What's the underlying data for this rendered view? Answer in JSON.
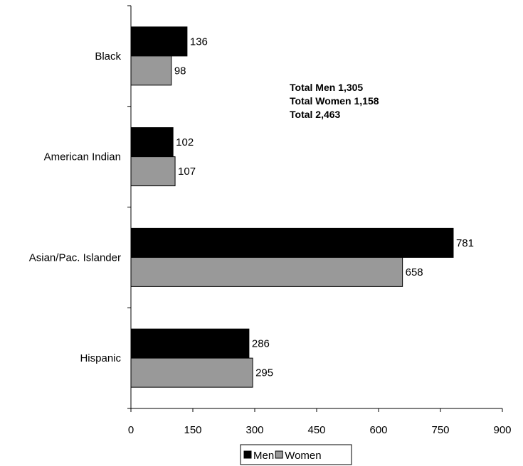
{
  "chart_data": {
    "type": "bar",
    "orientation": "horizontal",
    "categories": [
      "Black",
      "American Indian",
      "Asian/Pac. Islander",
      "Hispanic"
    ],
    "series": [
      {
        "name": "Men",
        "values": [
          136,
          102,
          781,
          286
        ],
        "color": "#000000"
      },
      {
        "name": "Women",
        "values": [
          98,
          107,
          658,
          295
        ],
        "color": "#999999"
      }
    ],
    "xlim": [
      0,
      900
    ],
    "x_ticks": [
      "0",
      "150",
      "300",
      "450",
      "600",
      "750",
      "900"
    ],
    "grid": false,
    "legend": "bottom",
    "annotations": [
      "Total Men 1,305",
      "Total Women 1,158",
      "Total 2,463"
    ]
  }
}
